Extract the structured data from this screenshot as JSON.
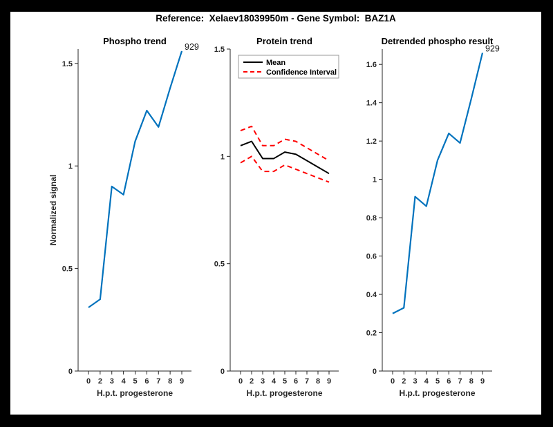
{
  "figure": {
    "title": "Reference:  Xelaev18039950m - Gene Symbol:  BAZ1A"
  },
  "colors": {
    "line_blue": "#0072BD",
    "ci_red": "#FF0000",
    "mean_black": "#000000",
    "axis": "#262626",
    "background": "#FFFFFF",
    "frame": "#000000",
    "legend_border": "#999999"
  },
  "chart_data": [
    {
      "type": "line",
      "title": "Phospho trend",
      "xlabel": "H.p.t. progesterone",
      "ylabel": "Normalized signal",
      "x_tick_labels": [
        "0",
        "2",
        "3",
        "4",
        "5",
        "6",
        "7",
        "8",
        "9"
      ],
      "ylim": [
        0,
        1.57
      ],
      "yticks": [
        0,
        0.5,
        1,
        1.5
      ],
      "ytick_labels": [
        "0",
        "0.5",
        "1",
        "1.5"
      ],
      "grid": false,
      "legend": null,
      "annotation": {
        "text": "929",
        "at": "last-point"
      },
      "series": [
        {
          "name": "phospho-signal",
          "color": "#0072BD",
          "dash": "",
          "width": 2.2,
          "values": [
            0.31,
            0.35,
            0.9,
            0.86,
            1.12,
            1.27,
            1.19,
            1.38,
            1.56
          ]
        }
      ]
    },
    {
      "type": "line",
      "title": "Protein trend",
      "xlabel": "H.p.t. progesterone",
      "ylabel": "",
      "x_tick_labels": [
        "0",
        "2",
        "3",
        "4",
        "5",
        "6",
        "7",
        "8",
        "9"
      ],
      "ylim": [
        0,
        1.5
      ],
      "yticks": [
        0,
        0.5,
        1,
        1.5
      ],
      "ytick_labels": [
        "0",
        "0.5",
        "1",
        "1.5"
      ],
      "grid": false,
      "legend": {
        "position": "top-left",
        "entries": [
          {
            "label": "Mean",
            "color": "#000000",
            "dash": ""
          },
          {
            "label": "Confidence Interval",
            "color": "#FF0000",
            "dash": "6 4"
          }
        ]
      },
      "annotation": null,
      "series": [
        {
          "name": "mean",
          "color": "#000000",
          "dash": "",
          "width": 2,
          "values": [
            1.05,
            1.07,
            0.99,
            0.99,
            1.02,
            1.01,
            0.98,
            0.95,
            0.92
          ]
        },
        {
          "name": "confidence-upper",
          "color": "#FF0000",
          "dash": "7 5",
          "width": 2,
          "values": [
            1.12,
            1.14,
            1.05,
            1.05,
            1.08,
            1.07,
            1.04,
            1.01,
            0.98
          ]
        },
        {
          "name": "confidence-lower",
          "color": "#FF0000",
          "dash": "7 5",
          "width": 2,
          "values": [
            0.97,
            1.0,
            0.93,
            0.93,
            0.96,
            0.94,
            0.92,
            0.9,
            0.88
          ]
        }
      ]
    },
    {
      "type": "line",
      "title": "Detrended phospho result",
      "xlabel": "H.p.t. progesterone",
      "ylabel": "",
      "x_tick_labels": [
        "0",
        "2",
        "3",
        "4",
        "5",
        "6",
        "7",
        "8",
        "9"
      ],
      "ylim": [
        0,
        1.68
      ],
      "yticks": [
        0,
        0.2,
        0.4,
        0.6,
        0.8,
        1,
        1.2,
        1.4,
        1.6
      ],
      "ytick_labels": [
        "0",
        "0.2",
        "0.4",
        "0.6",
        "0.8",
        "1",
        "1.2",
        "1.4",
        "1.6"
      ],
      "grid": false,
      "legend": null,
      "annotation": {
        "text": "929",
        "at": "last-point"
      },
      "series": [
        {
          "name": "detrended-phospho",
          "color": "#0072BD",
          "dash": "",
          "width": 2.2,
          "values": [
            0.3,
            0.33,
            0.91,
            0.86,
            1.1,
            1.24,
            1.19,
            1.42,
            1.66
          ]
        }
      ]
    }
  ]
}
